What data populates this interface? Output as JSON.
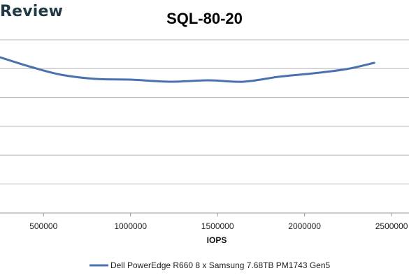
{
  "watermark_text": "Review",
  "chart_data": {
    "type": "line",
    "title": "SQL-80-20",
    "xlabel": "IOPS",
    "ylabel": "",
    "xlim": [
      250000,
      2600000
    ],
    "x_ticks": [
      500000,
      1000000,
      1500000,
      2000000,
      2500000
    ],
    "x_tick_labels": [
      "500000",
      "1000000",
      "1500000",
      "2000000",
      "2500000"
    ],
    "gridlines": 6,
    "grid": true,
    "legend_position": "bottom",
    "series": [
      {
        "name": "Dell PowerEdge R660 8 x Samsung 7.68TB PM1743 Gen5",
        "color": "#4a72b0",
        "points": [
          {
            "x": 250000,
            "y": 82
          },
          {
            "x": 430000,
            "y": 96
          },
          {
            "x": 600000,
            "y": 107
          },
          {
            "x": 800000,
            "y": 113
          },
          {
            "x": 1000000,
            "y": 114
          },
          {
            "x": 1230000,
            "y": 117
          },
          {
            "x": 1450000,
            "y": 115
          },
          {
            "x": 1650000,
            "y": 117
          },
          {
            "x": 1850000,
            "y": 110
          },
          {
            "x": 2050000,
            "y": 105
          },
          {
            "x": 2240000,
            "y": 99
          },
          {
            "x": 2400000,
            "y": 90
          }
        ]
      }
    ]
  }
}
